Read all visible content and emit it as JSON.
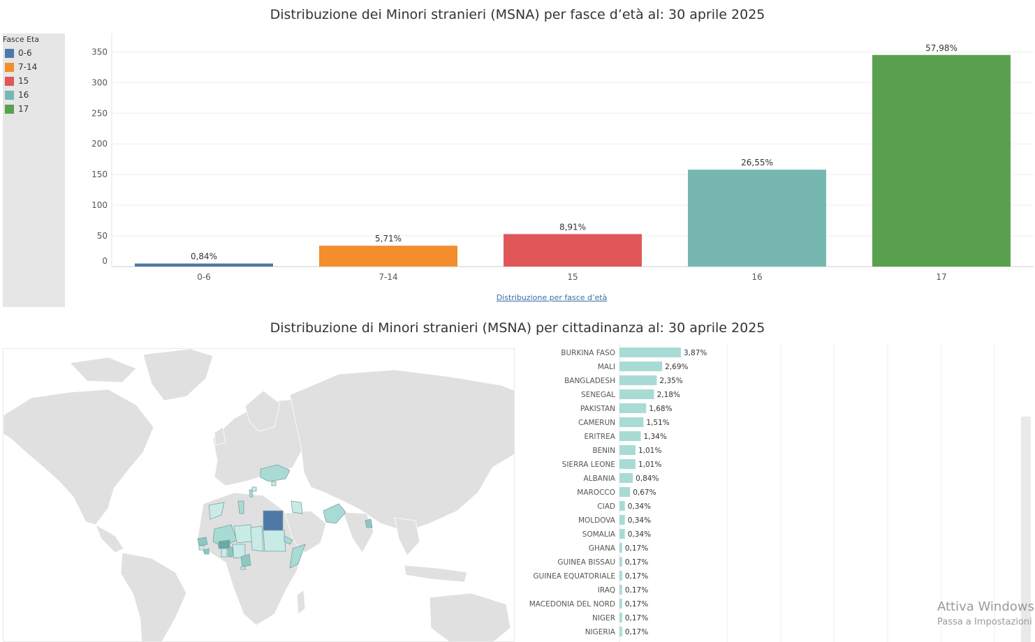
{
  "top": {
    "title": "Distribuzione dei Minori stranieri (MSNA) per fasce d’età al: 30 aprile 2025",
    "x_axis_title": "Distribuzione per fasce d’età"
  },
  "legend": {
    "title": "Fasce Eta",
    "items": [
      {
        "label": "0-6",
        "color": "#4e79a7"
      },
      {
        "label": "7-14",
        "color": "#f28e2b"
      },
      {
        "label": "15",
        "color": "#e15759"
      },
      {
        "label": "16",
        "color": "#76b7b2"
      },
      {
        "label": "17",
        "color": "#59a14f"
      }
    ]
  },
  "bottom": {
    "title": "Distribuzione di Minori stranieri (MSNA) per cittadinanza al: 30 aprile 2025"
  },
  "watermark": {
    "line1": "Attiva Windows",
    "line2": "Passa a Impostazioni"
  },
  "chart_data": [
    {
      "type": "bar",
      "categories": [
        "0-6",
        "7-14",
        "15",
        "16",
        "17"
      ],
      "values": [
        5,
        34,
        53,
        158,
        345
      ],
      "data_labels": [
        "0,84%",
        "5,71%",
        "8,91%",
        "26,55%",
        "57,98%"
      ],
      "colors": [
        "#4e79a7",
        "#f28e2b",
        "#e15759",
        "#76b7b2",
        "#59a14f"
      ],
      "title": "Distribuzione dei Minori stranieri (MSNA) per fasce d’età al: 30 aprile 2025",
      "xlabel": "Distribuzione per fasce d’età",
      "ylabel": "",
      "ylim": [
        0,
        380
      ],
      "yticks": [
        0,
        50,
        100,
        150,
        200,
        250,
        300,
        350
      ],
      "grid": true,
      "legend": "left"
    },
    {
      "type": "bar",
      "orientation": "horizontal",
      "categories": [
        "BURKINA FASO",
        "MALI",
        "BANGLADESH",
        "SENEGAL",
        "PAKISTAN",
        "CAMERUN",
        "ERITREA",
        "BENIN",
        "SIERRA LEONE",
        "ALBANIA",
        "MAROCCO",
        "CIAD",
        "MOLDOVA",
        "SOMALIA",
        "GHANA",
        "GUINEA BISSAU",
        "GUINEA EQUATORIALE",
        "IRAQ",
        "MACEDONIA DEL NORD",
        "NIGER",
        "NIGERIA"
      ],
      "values": [
        3.87,
        2.69,
        2.35,
        2.18,
        1.68,
        1.51,
        1.34,
        1.01,
        1.01,
        0.84,
        0.67,
        0.34,
        0.34,
        0.34,
        0.17,
        0.17,
        0.17,
        0.17,
        0.17,
        0.17,
        0.17
      ],
      "data_labels": [
        "3,87%",
        "2,69%",
        "2,35%",
        "2,18%",
        "1,68%",
        "1,51%",
        "1,34%",
        "1,01%",
        "1,01%",
        "0,84%",
        "0,67%",
        "0,34%",
        "0,34%",
        "0,34%",
        "0,17%",
        "0,17%",
        "0,17%",
        "0,17%",
        "0,17%",
        "0,17%",
        "0,17%"
      ],
      "color": "#a9dbd5",
      "title": "Distribuzione di Minori stranieri (MSNA) per cittadinanza al: 30 aprile 2025",
      "xlim": [
        0,
        25
      ],
      "grid": true
    }
  ]
}
